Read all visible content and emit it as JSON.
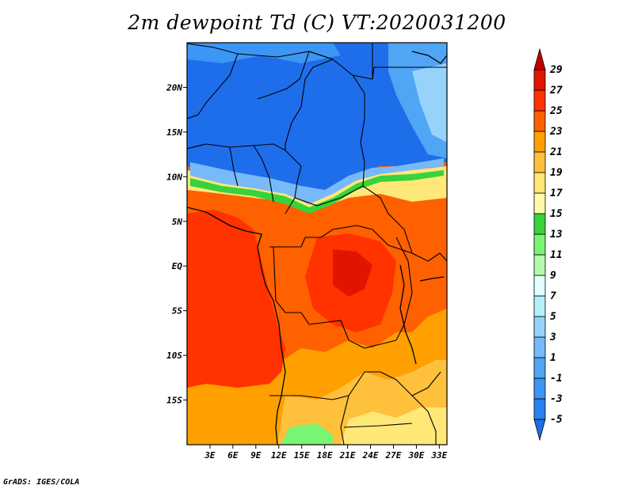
{
  "title": "2m dewpoint Td (C) VT:2020031200",
  "credit": "GrADS: IGES/COLA",
  "map": {
    "lon_range": [
      0,
      34
    ],
    "lat_range": [
      -20,
      25
    ],
    "x_ticks": [
      {
        "value": 3,
        "label": "3E"
      },
      {
        "value": 6,
        "label": "6E"
      },
      {
        "value": 9,
        "label": "9E"
      },
      {
        "value": 12,
        "label": "12E"
      },
      {
        "value": 15,
        "label": "15E"
      },
      {
        "value": 18,
        "label": "18E"
      },
      {
        "value": 21,
        "label": "21E"
      },
      {
        "value": 24,
        "label": "24E"
      },
      {
        "value": 27,
        "label": "27E"
      },
      {
        "value": 30,
        "label": "30E"
      },
      {
        "value": 33,
        "label": "33E"
      }
    ],
    "y_ticks": [
      {
        "value": 20,
        "label": "20N"
      },
      {
        "value": 15,
        "label": "15N"
      },
      {
        "value": 10,
        "label": "10N"
      },
      {
        "value": 5,
        "label": "5N"
      },
      {
        "value": 0,
        "label": "EQ"
      },
      {
        "value": -5,
        "label": "5S"
      },
      {
        "value": -10,
        "label": "10S"
      },
      {
        "value": -15,
        "label": "15S"
      }
    ]
  },
  "colorbar": {
    "levels": [
      "-5",
      "-3",
      "-1",
      "1",
      "3",
      "5",
      "7",
      "9",
      "11",
      "13",
      "15",
      "17",
      "19",
      "21",
      "23",
      "25",
      "27",
      "29"
    ],
    "colors": [
      "#1e6eeb",
      "#2882f0",
      "#3c96f5",
      "#50a5f5",
      "#78b9fa",
      "#96d2fa",
      "#b4f0fa",
      "#e1ffff",
      "#b4faaa",
      "#78f573",
      "#37d23c",
      "#fffaaa",
      "#ffe878",
      "#ffc03c",
      "#ffa000",
      "#ff6000",
      "#ff3200",
      "#e11400",
      "#c00000"
    ]
  }
}
